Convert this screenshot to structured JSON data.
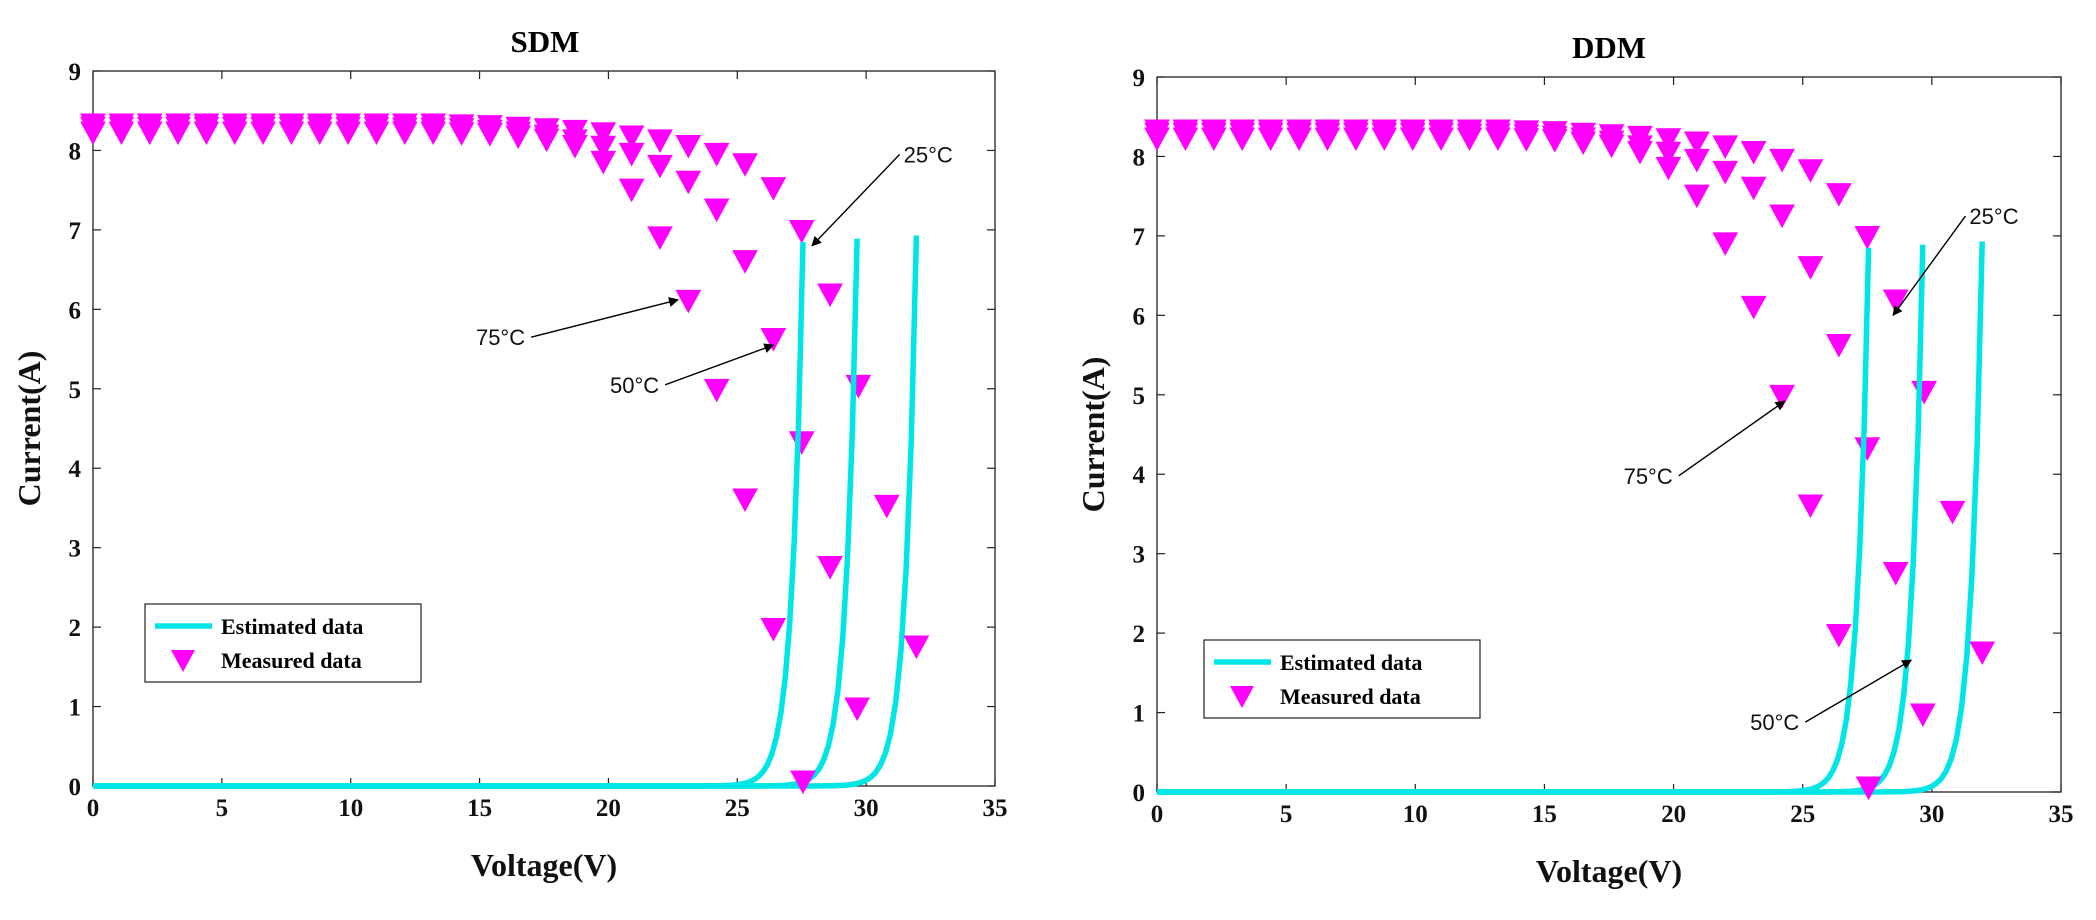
{
  "colors": {
    "estimated": "#00e5e5",
    "measured": "#ff00ff",
    "arrow": "#000000"
  },
  "chart_data": [
    {
      "type": "line",
      "title": "SDM",
      "xlabel": "Voltage(V)",
      "ylabel": "Current(A)",
      "xlim": [
        0,
        35
      ],
      "ylim": [
        0,
        9
      ],
      "xticks": [
        "0",
        "5",
        "10",
        "15",
        "20",
        "25",
        "30",
        "35"
      ],
      "yticks": [
        "0",
        "1",
        "2",
        "3",
        "4",
        "5",
        "6",
        "7",
        "8",
        "9"
      ],
      "legend": {
        "position": "bottom-left",
        "entries": [
          "Estimated data",
          "Measured data"
        ]
      },
      "series": [
        {
          "name": "25°C",
          "isc": 8.35,
          "vmax": 31.95,
          "measured_v": [
            0,
            1.1,
            2.2,
            3.3,
            4.4,
            5.5,
            6.6,
            7.7,
            8.8,
            9.9,
            11,
            12.1,
            13.2,
            14.3,
            15.4,
            16.5,
            17.6,
            18.7,
            19.8,
            20.9,
            22,
            23.1,
            24.2,
            25.3,
            26.4,
            27.5,
            28.6,
            29.7,
            30.8,
            31.95
          ],
          "measured_i": [
            8.32,
            8.32,
            8.32,
            8.32,
            8.32,
            8.32,
            8.32,
            8.32,
            8.32,
            8.32,
            8.32,
            8.32,
            8.32,
            8.31,
            8.3,
            8.28,
            8.26,
            8.24,
            8.21,
            8.17,
            8.12,
            8.05,
            7.95,
            7.82,
            7.52,
            6.98,
            6.18,
            5.03,
            3.52,
            1.75
          ]
        },
        {
          "name": "50°C",
          "isc": 8.3,
          "vmax": 29.65,
          "measured_v": [
            0,
            1.1,
            2.2,
            3.3,
            4.4,
            5.5,
            6.6,
            7.7,
            8.8,
            9.9,
            11,
            12.1,
            13.2,
            14.3,
            15.4,
            16.5,
            17.6,
            18.7,
            19.8,
            20.9,
            22,
            23.1,
            24.2,
            25.3,
            26.4,
            27.5,
            28.6,
            29.65
          ],
          "measured_i": [
            8.28,
            8.28,
            8.28,
            8.28,
            8.28,
            8.28,
            8.28,
            8.28,
            8.28,
            8.28,
            8.28,
            8.27,
            8.27,
            8.26,
            8.24,
            8.22,
            8.18,
            8.12,
            8.04,
            7.95,
            7.8,
            7.6,
            7.25,
            6.6,
            5.62,
            4.32,
            2.75,
            0.97
          ]
        },
        {
          "name": "75°C",
          "isc": 8.25,
          "vmax": 27.55,
          "measured_v": [
            0,
            1.1,
            2.2,
            3.3,
            4.4,
            5.5,
            6.6,
            7.7,
            8.8,
            9.9,
            11,
            12.1,
            13.2,
            14.3,
            15.4,
            16.5,
            17.6,
            18.7,
            19.8,
            20.9,
            22,
            23.1,
            24.2,
            25.3,
            26.4,
            27.55
          ],
          "measured_i": [
            8.22,
            8.22,
            8.22,
            8.22,
            8.22,
            8.22,
            8.22,
            8.22,
            8.22,
            8.22,
            8.22,
            8.22,
            8.22,
            8.21,
            8.2,
            8.17,
            8.13,
            8.05,
            7.85,
            7.5,
            6.9,
            6.1,
            4.98,
            3.6,
            1.97,
            0.05
          ]
        }
      ],
      "annotations": [
        {
          "text": "25°C",
          "tail": [
            31.3,
            7.95
          ],
          "head": [
            27.9,
            6.8
          ]
        },
        {
          "text": "75°C",
          "tail": [
            17.0,
            5.65
          ],
          "head": [
            22.7,
            6.12
          ]
        },
        {
          "text": "50°C",
          "tail": [
            22.2,
            5.05
          ],
          "head": [
            26.4,
            5.55
          ]
        }
      ]
    },
    {
      "type": "line",
      "title": "DDM",
      "xlabel": "Voltage(V)",
      "ylabel": "Current(A)",
      "xlim": [
        0,
        35
      ],
      "ylim": [
        0,
        9
      ],
      "xticks": [
        "0",
        "5",
        "10",
        "15",
        "20",
        "25",
        "30",
        "35"
      ],
      "yticks": [
        "0",
        "1",
        "2",
        "3",
        "4",
        "5",
        "6",
        "7",
        "8",
        "9"
      ],
      "legend": {
        "position": "bottom-left",
        "entries": [
          "Estimated data",
          "Measured data"
        ]
      },
      "series": [
        {
          "name": "25°C",
          "isc": 8.35,
          "vmax": 31.95,
          "measured_v": [
            0,
            1.1,
            2.2,
            3.3,
            4.4,
            5.5,
            6.6,
            7.7,
            8.8,
            9.9,
            11,
            12.1,
            13.2,
            14.3,
            15.4,
            16.5,
            17.6,
            18.7,
            19.8,
            20.9,
            22,
            23.1,
            24.2,
            25.3,
            26.4,
            27.5,
            28.6,
            29.7,
            30.8,
            31.95
          ],
          "measured_i": [
            8.32,
            8.32,
            8.32,
            8.32,
            8.32,
            8.32,
            8.32,
            8.32,
            8.32,
            8.32,
            8.32,
            8.32,
            8.32,
            8.31,
            8.3,
            8.28,
            8.26,
            8.24,
            8.21,
            8.17,
            8.12,
            8.05,
            7.95,
            7.82,
            7.52,
            6.98,
            6.18,
            5.03,
            3.52,
            1.75
          ]
        },
        {
          "name": "50°C",
          "isc": 8.3,
          "vmax": 29.65,
          "measured_v": [
            0,
            1.1,
            2.2,
            3.3,
            4.4,
            5.5,
            6.6,
            7.7,
            8.8,
            9.9,
            11,
            12.1,
            13.2,
            14.3,
            15.4,
            16.5,
            17.6,
            18.7,
            19.8,
            20.9,
            22,
            23.1,
            24.2,
            25.3,
            26.4,
            27.5,
            28.6,
            29.65
          ],
          "measured_i": [
            8.28,
            8.28,
            8.28,
            8.28,
            8.28,
            8.28,
            8.28,
            8.28,
            8.28,
            8.28,
            8.28,
            8.27,
            8.27,
            8.26,
            8.24,
            8.22,
            8.18,
            8.12,
            8.04,
            7.95,
            7.8,
            7.6,
            7.25,
            6.6,
            5.62,
            4.32,
            2.75,
            0.97
          ]
        },
        {
          "name": "75°C",
          "isc": 8.25,
          "vmax": 27.55,
          "measured_v": [
            0,
            1.1,
            2.2,
            3.3,
            4.4,
            5.5,
            6.6,
            7.7,
            8.8,
            9.9,
            11,
            12.1,
            13.2,
            14.3,
            15.4,
            16.5,
            17.6,
            18.7,
            19.8,
            20.9,
            22,
            23.1,
            24.2,
            25.3,
            26.4,
            27.55
          ],
          "measured_i": [
            8.22,
            8.22,
            8.22,
            8.22,
            8.22,
            8.22,
            8.22,
            8.22,
            8.22,
            8.22,
            8.22,
            8.22,
            8.22,
            8.21,
            8.2,
            8.17,
            8.13,
            8.05,
            7.85,
            7.5,
            6.9,
            6.1,
            4.98,
            3.6,
            1.97,
            0.05
          ]
        }
      ],
      "annotations": [
        {
          "text": "25°C",
          "tail": [
            31.3,
            7.25
          ],
          "head": [
            28.5,
            6.0
          ]
        },
        {
          "text": "75°C",
          "tail": [
            20.2,
            3.98
          ],
          "head": [
            24.3,
            4.92
          ]
        },
        {
          "text": "50°C",
          "tail": [
            25.1,
            0.88
          ],
          "head": [
            29.2,
            1.66
          ]
        }
      ]
    }
  ]
}
